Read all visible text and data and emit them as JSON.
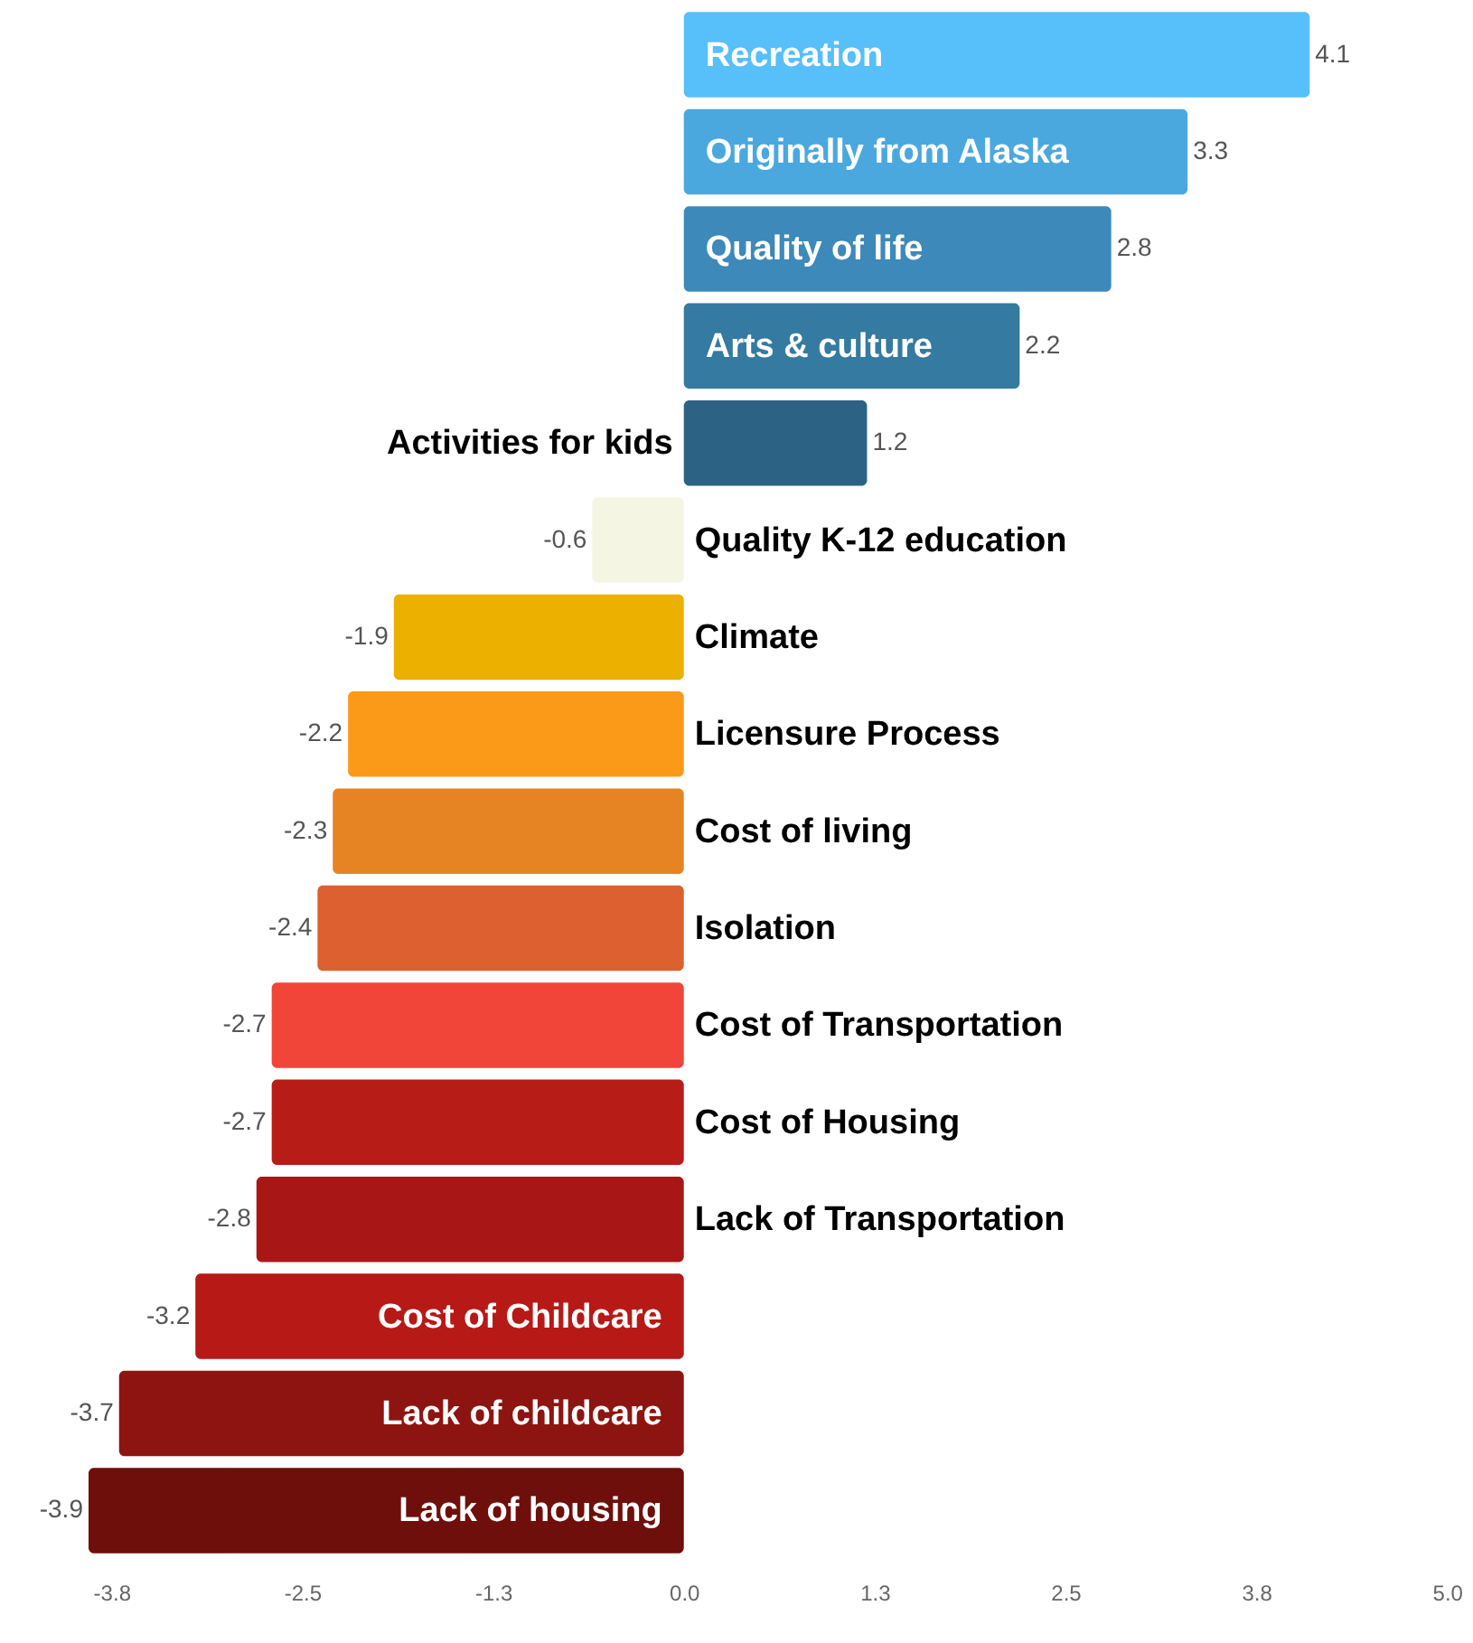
{
  "chart_data": {
    "type": "bar",
    "orientation": "horizontal",
    "categories": [
      "Recreation",
      "Originally from Alaska",
      "Quality of life",
      "Arts & culture",
      "Activities for kids",
      "Quality K-12 education",
      "Climate",
      "Licensure Process",
      "Cost of living",
      "Isolation",
      "Cost of Transportation",
      "Cost of Housing",
      "Lack of Transportation",
      "Cost of Childcare",
      "Lack of childcare",
      "Lack of housing"
    ],
    "values": [
      4.1,
      3.3,
      2.8,
      2.2,
      1.2,
      -0.6,
      -1.9,
      -2.2,
      -2.3,
      -2.4,
      -2.7,
      -2.7,
      -2.8,
      -3.2,
      -3.7,
      -3.9
    ],
    "colors": [
      "#57bff9",
      "#4aa8de",
      "#3d89b9",
      "#357aa0",
      "#2c6385",
      "#f4f6e3",
      "#ecb000",
      "#fb9a18",
      "#e68424",
      "#dc6030",
      "#f2453a",
      "#b71c17",
      "#a81716",
      "#b71916",
      "#8d1410",
      "#6e0f0c"
    ],
    "xlim": [
      -4.48,
      5.17
    ],
    "xticks": [
      {
        "value": -3.75,
        "label": "-3.8"
      },
      {
        "value": -2.5,
        "label": "-2.5"
      },
      {
        "value": -1.25,
        "label": "-1.3"
      },
      {
        "value": 0,
        "label": "0.0"
      },
      {
        "value": 1.25,
        "label": "1.3"
      },
      {
        "value": 2.5,
        "label": "2.5"
      },
      {
        "value": 3.75,
        "label": "3.8"
      },
      {
        "value": 5.0,
        "label": "5.0"
      }
    ],
    "data_labels": true,
    "grid": false
  }
}
